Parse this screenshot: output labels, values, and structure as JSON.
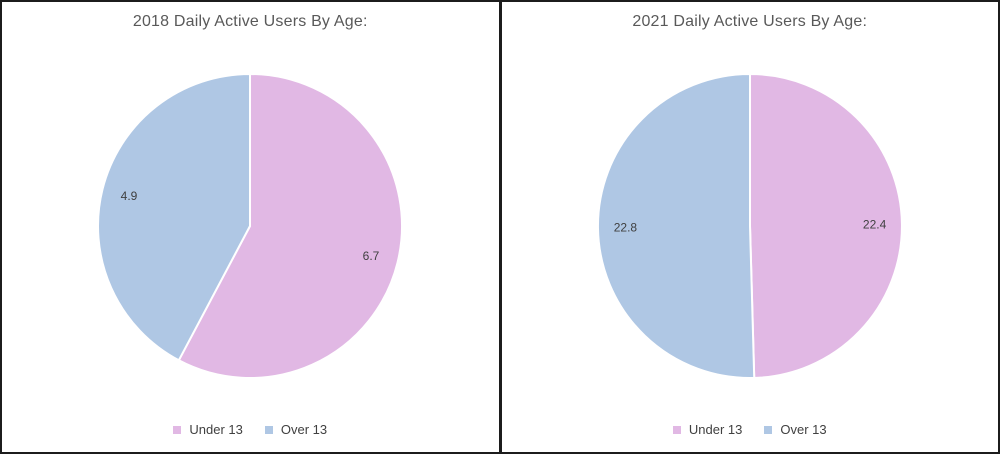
{
  "chart_data": [
    {
      "type": "pie",
      "title": "2018 Daily Active Users By Age:",
      "categories": [
        "Under 13",
        "Over 13"
      ],
      "values": [
        6.7,
        4.9
      ],
      "data_labels": [
        "6.7",
        "4.9"
      ],
      "colors": [
        "#e1b8e4",
        "#afc7e4"
      ],
      "start_angle_deg": 0,
      "direction": "clockwise",
      "legend_position": "bottom",
      "slice_border_color": "#ffffff",
      "label_color": "#404040",
      "title_color": "#595959"
    },
    {
      "type": "pie",
      "title": "2021 Daily Active Users By Age:",
      "categories": [
        "Under 13",
        "Over 13"
      ],
      "values": [
        22.4,
        22.8
      ],
      "data_labels": [
        "22.4",
        "22.8"
      ],
      "colors": [
        "#e1b8e4",
        "#afc7e4"
      ],
      "start_angle_deg": 0,
      "direction": "clockwise",
      "legend_position": "bottom",
      "slice_border_color": "#ffffff",
      "label_color": "#404040",
      "title_color": "#595959"
    }
  ]
}
